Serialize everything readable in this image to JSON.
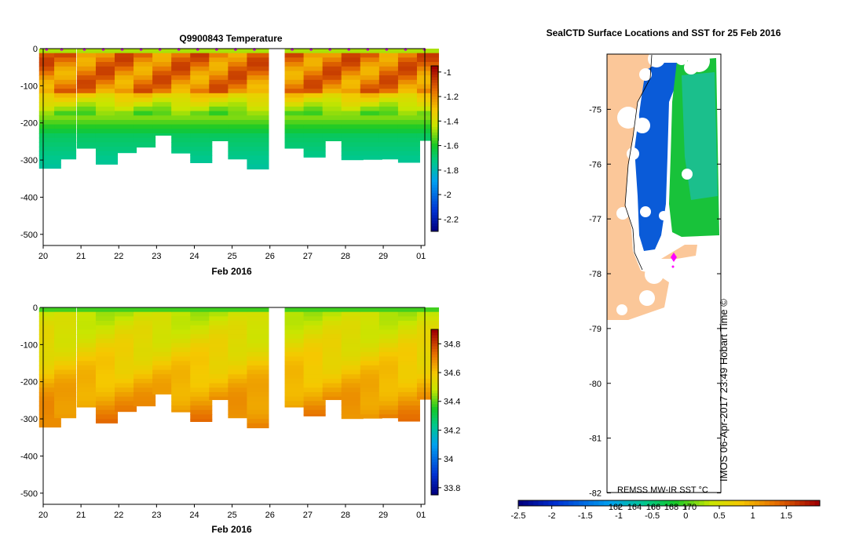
{
  "chart_data": [
    {
      "type": "heatmap",
      "title": "Q9900843  Temperature",
      "xlabel": "Feb 2016",
      "ylabel": "",
      "x_ticks": [
        "20",
        "21",
        "22",
        "23",
        "24",
        "25",
        "26",
        "27",
        "28",
        "29",
        "01"
      ],
      "y_ticks": [
        "0",
        "-100",
        "-200",
        "-300",
        "-400",
        "-500"
      ],
      "ylim": [
        -530,
        0
      ],
      "colorbar": {
        "ticks": [
          "-1",
          "-1.2",
          "-1.4",
          "-1.6",
          "-1.8",
          "-2",
          "-2.2"
        ],
        "range": [
          -2.3,
          -0.95
        ]
      },
      "profiles": [
        {
          "day": 20.1,
          "depth": -322
        },
        {
          "day": 20.5,
          "depth": -297
        },
        {
          "day": 21.1,
          "depth": -268
        },
        {
          "day": 21.6,
          "depth": -311
        },
        {
          "day": 22.1,
          "depth": -280
        },
        {
          "day": 22.6,
          "depth": -265
        },
        {
          "day": 23.1,
          "depth": -233
        },
        {
          "day": 23.6,
          "depth": -281
        },
        {
          "day": 24.1,
          "depth": -307
        },
        {
          "day": 24.6,
          "depth": -248
        },
        {
          "day": 25.1,
          "depth": -297
        },
        {
          "day": 25.6,
          "depth": -324
        },
        {
          "day": 26.6,
          "depth": -268
        },
        {
          "day": 27.1,
          "depth": -292
        },
        {
          "day": 27.6,
          "depth": -248
        },
        {
          "day": 28.1,
          "depth": -299
        },
        {
          "day": 28.6,
          "depth": -298
        },
        {
          "day": 29.1,
          "depth": -297
        },
        {
          "day": 29.6,
          "depth": -306
        },
        {
          "day": 30.1,
          "depth": -247
        }
      ]
    },
    {
      "type": "heatmap",
      "title": "",
      "xlabel": "Feb 2016",
      "ylabel": "",
      "x_ticks": [
        "20",
        "21",
        "22",
        "23",
        "24",
        "25",
        "26",
        "27",
        "28",
        "29",
        "01"
      ],
      "y_ticks": [
        "0",
        "-100",
        "-200",
        "-300",
        "-400",
        "-500"
      ],
      "ylim": [
        -530,
        0
      ],
      "colorbar": {
        "ticks": [
          "34.8",
          "34.6",
          "34.4",
          "34.2",
          "34",
          "33.8"
        ],
        "range": [
          33.75,
          34.9
        ]
      }
    },
    {
      "type": "heatmap",
      "title": "SealCTD Surface Locations and SST for 25 Feb 2016",
      "xlabel": "",
      "ylabel": "",
      "y_ticks": [
        "-75",
        "-76",
        "-77",
        "-78",
        "-79",
        "-80",
        "-81",
        "-82"
      ],
      "ylim": [
        -82,
        -74
      ],
      "x_ticks": [
        "162",
        "164",
        "166",
        "168",
        "170"
      ],
      "colorbar": {
        "ticks": [
          "-2.5",
          "-2",
          "-1.5",
          "-1",
          "-0.5",
          "0",
          "0.5",
          "1",
          "1.5"
        ],
        "range": [
          -2.5,
          2.0
        ]
      },
      "source_label": "REMSS MW-IR SST °C",
      "timestamp": "IMOS 06-Apr-2017 23:49 Hobart Time ©"
    }
  ]
}
